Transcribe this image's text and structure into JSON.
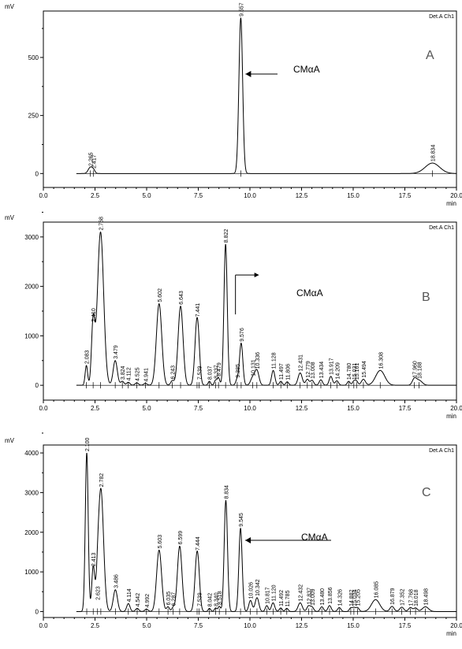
{
  "chart_data": [
    {
      "type": "line",
      "panel": "A",
      "y_unit_label": "mV",
      "detector_label": "Det.A Ch1",
      "x_unit_label": "min",
      "xlim": [
        0,
        20
      ],
      "ylim": [
        -60,
        700
      ],
      "x_ticks": [
        "0.0",
        "2.5",
        "5.0",
        "7.5",
        "10.0",
        "12.5",
        "15.0",
        "17.5",
        "20.0"
      ],
      "y_ticks": [
        "0",
        "250",
        "500"
      ],
      "y_tick_values": [
        0,
        250,
        500
      ],
      "annotation": "CMαA",
      "arrow_target_rt": 9.557,
      "peaks": [
        {
          "rt": 2.265,
          "height": 25,
          "width": 0.1,
          "label": "2.265"
        },
        {
          "rt": 2.417,
          "height": 15,
          "width": 0.08,
          "label": "2.417"
        },
        {
          "rt": 9.557,
          "height": 670,
          "width": 0.09,
          "label": "9.557"
        },
        {
          "rt": 18.834,
          "height": 45,
          "width": 0.35,
          "label": "18.834"
        }
      ]
    },
    {
      "type": "line",
      "panel": "B",
      "y_unit_label": "mV",
      "detector_label": "Det.A Ch1",
      "x_unit_label": "min",
      "xlim": [
        0,
        20
      ],
      "ylim": [
        -300,
        3300
      ],
      "x_ticks": [
        "0.0",
        "2.5",
        "5.0",
        "7.5",
        "10.0",
        "12.5",
        "15.0",
        "17.5",
        "20.0"
      ],
      "y_ticks": [
        "0",
        "1000",
        "2000",
        "3000"
      ],
      "y_tick_values": [
        0,
        1000,
        2000,
        3000
      ],
      "annotation": "CMαA",
      "arrow_target_rt": 9.576,
      "peaks": [
        {
          "rt": 2.083,
          "height": 400,
          "width": 0.06,
          "label": "2.083"
        },
        {
          "rt": 2.41,
          "height": 1250,
          "width": 0.08,
          "label": "2.410"
        },
        {
          "rt": 2.768,
          "height": 3100,
          "width": 0.15,
          "label": "2.768"
        },
        {
          "rt": 3.479,
          "height": 500,
          "width": 0.1,
          "label": "3.479"
        },
        {
          "rt": 3.824,
          "height": 80,
          "width": 0.08,
          "label": "3.824"
        },
        {
          "rt": 4.112,
          "height": 60,
          "width": 0.08,
          "label": "4.112"
        },
        {
          "rt": 4.525,
          "height": 50,
          "width": 0.08,
          "label": "4.525"
        },
        {
          "rt": 4.941,
          "height": 40,
          "width": 0.08,
          "label": "4.941"
        },
        {
          "rt": 5.602,
          "height": 1650,
          "width": 0.13,
          "label": "5.602"
        },
        {
          "rt": 6.243,
          "height": 90,
          "width": 0.08,
          "label": "6.243"
        },
        {
          "rt": 6.643,
          "height": 1600,
          "width": 0.12,
          "label": "6.643"
        },
        {
          "rt": 7.441,
          "height": 1350,
          "width": 0.1,
          "label": "7.441"
        },
        {
          "rt": 7.539,
          "height": 80,
          "width": 0.06,
          "label": "7.539"
        },
        {
          "rt": 8.037,
          "height": 80,
          "width": 0.06,
          "label": "8.037"
        },
        {
          "rt": 8.337,
          "height": 100,
          "width": 0.06,
          "label": "8.337"
        },
        {
          "rt": 8.479,
          "height": 150,
          "width": 0.06,
          "label": "8.479"
        },
        {
          "rt": 8.822,
          "height": 2850,
          "width": 0.08,
          "label": "8.822"
        },
        {
          "rt": 9.385,
          "height": 120,
          "width": 0.07,
          "label": "9.385"
        },
        {
          "rt": 9.576,
          "height": 850,
          "width": 0.08,
          "label": "9.576"
        },
        {
          "rt": 10.131,
          "height": 150,
          "width": 0.1,
          "label": "10.131"
        },
        {
          "rt": 10.336,
          "height": 300,
          "width": 0.1,
          "label": "10.336"
        },
        {
          "rt": 11.128,
          "height": 300,
          "width": 0.08,
          "label": "11.128"
        },
        {
          "rt": 11.497,
          "height": 80,
          "width": 0.07,
          "label": "11.497"
        },
        {
          "rt": 11.806,
          "height": 70,
          "width": 0.07,
          "label": "11.806"
        },
        {
          "rt": 12.431,
          "height": 250,
          "width": 0.1,
          "label": "12.431"
        },
        {
          "rt": 12.779,
          "height": 120,
          "width": 0.08,
          "label": "12.779"
        },
        {
          "rt": 13.008,
          "height": 100,
          "width": 0.08,
          "label": "13.008"
        },
        {
          "rt": 13.434,
          "height": 110,
          "width": 0.08,
          "label": "13.434"
        },
        {
          "rt": 13.917,
          "height": 180,
          "width": 0.08,
          "label": "13.917"
        },
        {
          "rt": 14.209,
          "height": 90,
          "width": 0.08,
          "label": "14.209"
        },
        {
          "rt": 14.78,
          "height": 80,
          "width": 0.07,
          "label": "14.780"
        },
        {
          "rt": 15.031,
          "height": 80,
          "width": 0.07,
          "label": "15.031"
        },
        {
          "rt": 15.161,
          "height": 80,
          "width": 0.07,
          "label": "15.161"
        },
        {
          "rt": 15.494,
          "height": 120,
          "width": 0.1,
          "label": "15.494"
        },
        {
          "rt": 16.308,
          "height": 300,
          "width": 0.22,
          "label": "16.308"
        },
        {
          "rt": 17.96,
          "height": 120,
          "width": 0.1,
          "label": "17.960"
        },
        {
          "rt": 18.188,
          "height": 100,
          "width": 0.15,
          "label": "18.188"
        }
      ]
    },
    {
      "type": "line",
      "panel": "C",
      "y_unit_label": "mV",
      "detector_label": "Det.A Ch1",
      "x_unit_label": "min",
      "xlim": [
        0,
        20
      ],
      "ylim": [
        -150,
        4200
      ],
      "x_ticks": [
        "0.0",
        "2.5",
        "5.0",
        "7.5",
        "10.0",
        "12.5",
        "15.0",
        "17.5",
        "20.0"
      ],
      "y_ticks": [
        "0",
        "1000",
        "2000",
        "3000",
        "4000"
      ],
      "y_tick_values": [
        0,
        1000,
        2000,
        3000,
        4000
      ],
      "annotation": "CMαA",
      "arrow_target_rt": 9.545,
      "peaks": [
        {
          "rt": 2.1,
          "height": 4000,
          "width": 0.07,
          "label": "2.100"
        },
        {
          "rt": 2.413,
          "height": 1100,
          "width": 0.07,
          "label": "2.413"
        },
        {
          "rt": 2.623,
          "height": 250,
          "width": 0.06,
          "label": "2.623"
        },
        {
          "rt": 2.782,
          "height": 3100,
          "width": 0.13,
          "label": "2.782"
        },
        {
          "rt": 3.486,
          "height": 550,
          "width": 0.1,
          "label": "3.486"
        },
        {
          "rt": 4.114,
          "height": 200,
          "width": 0.08,
          "label": "4.114"
        },
        {
          "rt": 4.542,
          "height": 80,
          "width": 0.08,
          "label": "4.542"
        },
        {
          "rt": 4.992,
          "height": 60,
          "width": 0.08,
          "label": "4.992"
        },
        {
          "rt": 5.603,
          "height": 1550,
          "width": 0.12,
          "label": "5.603"
        },
        {
          "rt": 6.035,
          "height": 120,
          "width": 0.07,
          "label": "6.035"
        },
        {
          "rt": 6.287,
          "height": 100,
          "width": 0.07,
          "label": "6.287"
        },
        {
          "rt": 6.599,
          "height": 1650,
          "width": 0.11,
          "label": "6.599"
        },
        {
          "rt": 7.444,
          "height": 1500,
          "width": 0.1,
          "label": "7.444"
        },
        {
          "rt": 7.539,
          "height": 90,
          "width": 0.06,
          "label": "7.539"
        },
        {
          "rt": 8.042,
          "height": 80,
          "width": 0.06,
          "label": "8.042"
        },
        {
          "rt": 8.34,
          "height": 90,
          "width": 0.06,
          "label": "8.340"
        },
        {
          "rt": 8.518,
          "height": 130,
          "width": 0.06,
          "label": "8.518"
        },
        {
          "rt": 8.834,
          "height": 2800,
          "width": 0.08,
          "label": "8.834"
        },
        {
          "rt": 9.545,
          "height": 2100,
          "width": 0.08,
          "label": "9.545"
        },
        {
          "rt": 10.026,
          "height": 280,
          "width": 0.08,
          "label": "10.026"
        },
        {
          "rt": 10.342,
          "height": 350,
          "width": 0.09,
          "label": "10.342"
        },
        {
          "rt": 10.817,
          "height": 150,
          "width": 0.07,
          "label": "10.817"
        },
        {
          "rt": 11.12,
          "height": 220,
          "width": 0.08,
          "label": "11.120"
        },
        {
          "rt": 11.492,
          "height": 90,
          "width": 0.07,
          "label": "11.492"
        },
        {
          "rt": 11.785,
          "height": 80,
          "width": 0.07,
          "label": "11.785"
        },
        {
          "rt": 12.432,
          "height": 220,
          "width": 0.1,
          "label": "12.432"
        },
        {
          "rt": 12.837,
          "height": 140,
          "width": 0.08,
          "label": "12.837"
        },
        {
          "rt": 13.009,
          "height": 110,
          "width": 0.08,
          "label": "13.009"
        },
        {
          "rt": 13.48,
          "height": 120,
          "width": 0.08,
          "label": "13.480"
        },
        {
          "rt": 13.856,
          "height": 150,
          "width": 0.08,
          "label": "13.856"
        },
        {
          "rt": 14.326,
          "height": 100,
          "width": 0.08,
          "label": "14.326"
        },
        {
          "rt": 14.882,
          "height": 90,
          "width": 0.07,
          "label": "14.882"
        },
        {
          "rt": 15.034,
          "height": 90,
          "width": 0.07,
          "label": "15.034"
        },
        {
          "rt": 15.205,
          "height": 100,
          "width": 0.08,
          "label": "15.205"
        },
        {
          "rt": 16.085,
          "height": 300,
          "width": 0.2,
          "label": "16.085"
        },
        {
          "rt": 16.879,
          "height": 130,
          "width": 0.1,
          "label": "16.879"
        },
        {
          "rt": 17.352,
          "height": 110,
          "width": 0.1,
          "label": "17.352"
        },
        {
          "rt": 17.768,
          "height": 100,
          "width": 0.09,
          "label": "17.768"
        },
        {
          "rt": 18.018,
          "height": 90,
          "width": 0.09,
          "label": "18.018"
        },
        {
          "rt": 18.498,
          "height": 120,
          "width": 0.15,
          "label": "18.498"
        }
      ]
    }
  ]
}
